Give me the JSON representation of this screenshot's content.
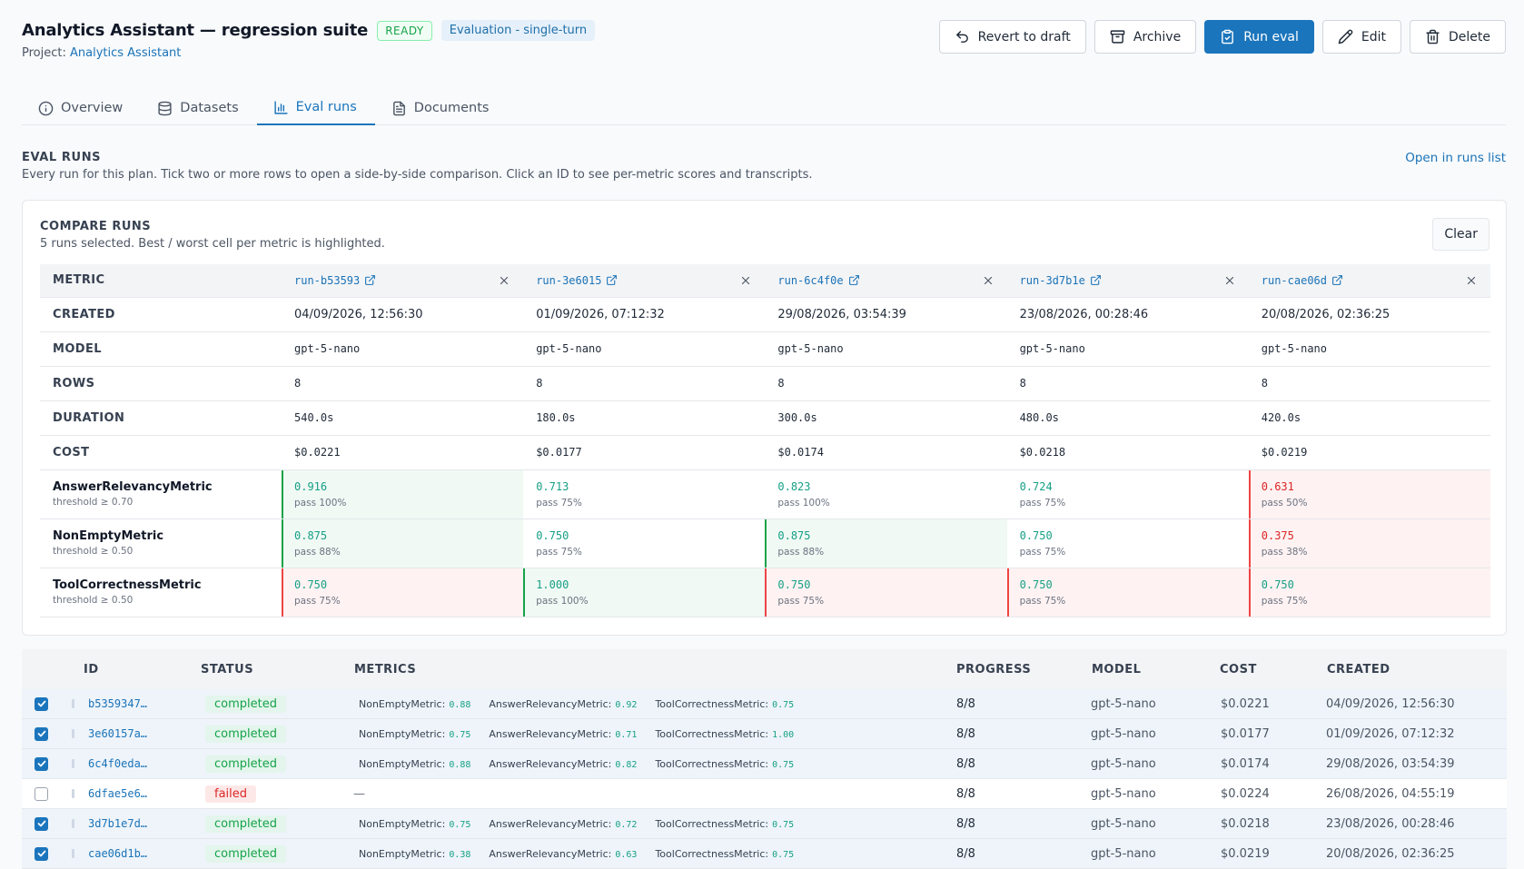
{
  "header": {
    "title": "Analytics Assistant — regression suite",
    "status_badge": "READY",
    "type_badge": "Evaluation - single-turn",
    "project_label": "Project:",
    "project_name": "Analytics Assistant"
  },
  "actions": {
    "revert": "Revert to draft",
    "archive": "Archive",
    "run_eval": "Run eval",
    "edit": "Edit",
    "delete": "Delete"
  },
  "tabs": [
    {
      "label": "Overview",
      "icon": "info-icon"
    },
    {
      "label": "Datasets",
      "icon": "database-icon"
    },
    {
      "label": "Eval runs",
      "icon": "bar-chart-icon",
      "active": true
    },
    {
      "label": "Documents",
      "icon": "document-icon"
    }
  ],
  "section": {
    "title": "EVAL RUNS",
    "description": "Every run for this plan. Tick two or more rows to open a side-by-side comparison. Click an ID to see per-metric scores and transcripts.",
    "open_link": "Open in runs list"
  },
  "compare": {
    "title": "COMPARE RUNS",
    "description": "5 runs selected. Best / worst cell per metric is highlighted.",
    "clear_label": "Clear",
    "metric_header": "METRIC",
    "runs": [
      {
        "id": "run-b53593",
        "created": "04/09/2026, 12:56:30",
        "model": "gpt-5-nano",
        "rows": "8",
        "duration": "540.0s",
        "cost": "$0.0221"
      },
      {
        "id": "run-3e6015",
        "created": "01/09/2026, 07:12:32",
        "model": "gpt-5-nano",
        "rows": "8",
        "duration": "180.0s",
        "cost": "$0.0177"
      },
      {
        "id": "run-6c4f0e",
        "created": "29/08/2026, 03:54:39",
        "model": "gpt-5-nano",
        "rows": "8",
        "duration": "300.0s",
        "cost": "$0.0174"
      },
      {
        "id": "run-3d7b1e",
        "created": "23/08/2026, 00:28:46",
        "model": "gpt-5-nano",
        "rows": "8",
        "duration": "480.0s",
        "cost": "$0.0218"
      },
      {
        "id": "run-cae06d",
        "created": "20/08/2026, 02:36:25",
        "model": "gpt-5-nano",
        "rows": "8",
        "duration": "420.0s",
        "cost": "$0.0219"
      }
    ],
    "row_labels": {
      "created": "CREATED",
      "model": "MODEL",
      "rows": "ROWS",
      "duration": "DURATION",
      "cost": "COST"
    },
    "metrics": [
      {
        "name": "AnswerRelevancyMetric",
        "threshold": "threshold ≥ 0.70",
        "cells": [
          {
            "score": "0.916",
            "pass": "pass 100%",
            "mark": "best"
          },
          {
            "score": "0.713",
            "pass": "pass 75%",
            "mark": ""
          },
          {
            "score": "0.823",
            "pass": "pass 100%",
            "mark": ""
          },
          {
            "score": "0.724",
            "pass": "pass 75%",
            "mark": ""
          },
          {
            "score": "0.631",
            "pass": "pass 50%",
            "mark": "worst"
          }
        ]
      },
      {
        "name": "NonEmptyMetric",
        "threshold": "threshold ≥ 0.50",
        "cells": [
          {
            "score": "0.875",
            "pass": "pass 88%",
            "mark": "best"
          },
          {
            "score": "0.750",
            "pass": "pass 75%",
            "mark": ""
          },
          {
            "score": "0.875",
            "pass": "pass 88%",
            "mark": "best"
          },
          {
            "score": "0.750",
            "pass": "pass 75%",
            "mark": ""
          },
          {
            "score": "0.375",
            "pass": "pass 38%",
            "mark": "worst"
          }
        ]
      },
      {
        "name": "ToolCorrectnessMetric",
        "threshold": "threshold ≥ 0.50",
        "cells": [
          {
            "score": "0.750",
            "pass": "pass 75%",
            "mark": "worst"
          },
          {
            "score": "1.000",
            "pass": "pass 100%",
            "mark": "best"
          },
          {
            "score": "0.750",
            "pass": "pass 75%",
            "mark": "worst"
          },
          {
            "score": "0.750",
            "pass": "pass 75%",
            "mark": "worst"
          },
          {
            "score": "0.750",
            "pass": "pass 75%",
            "mark": "worst"
          }
        ]
      }
    ]
  },
  "runs_table": {
    "headers": {
      "id": "ID",
      "status": "STATUS",
      "metrics": "METRICS",
      "progress": "PROGRESS",
      "model": "MODEL",
      "cost": "COST",
      "created": "CREATED"
    },
    "rows": [
      {
        "checked": true,
        "id": "b5359347…",
        "status": "completed",
        "ok": true,
        "metrics": [
          {
            "k": "NonEmptyMetric:",
            "v": "0.88"
          },
          {
            "k": "AnswerRelevancyMetric:",
            "v": "0.92"
          },
          {
            "k": "ToolCorrectnessMetric:",
            "v": "0.75"
          }
        ],
        "progress": "8/8",
        "model": "gpt-5-nano",
        "cost": "$0.0221",
        "created": "04/09/2026, 12:56:30"
      },
      {
        "checked": true,
        "id": "3e60157a…",
        "status": "completed",
        "ok": true,
        "metrics": [
          {
            "k": "NonEmptyMetric:",
            "v": "0.75"
          },
          {
            "k": "AnswerRelevancyMetric:",
            "v": "0.71"
          },
          {
            "k": "ToolCorrectnessMetric:",
            "v": "1.00"
          }
        ],
        "progress": "8/8",
        "model": "gpt-5-nano",
        "cost": "$0.0177",
        "created": "01/09/2026, 07:12:32"
      },
      {
        "checked": true,
        "id": "6c4f0eda…",
        "status": "completed",
        "ok": true,
        "metrics": [
          {
            "k": "NonEmptyMetric:",
            "v": "0.88"
          },
          {
            "k": "AnswerRelevancyMetric:",
            "v": "0.82"
          },
          {
            "k": "ToolCorrectnessMetric:",
            "v": "0.75"
          }
        ],
        "progress": "8/8",
        "model": "gpt-5-nano",
        "cost": "$0.0174",
        "created": "29/08/2026, 03:54:39"
      },
      {
        "checked": false,
        "id": "6dfae5e6…",
        "status": "failed",
        "ok": false,
        "metrics": [],
        "empty_metrics": "—",
        "progress": "8/8",
        "model": "gpt-5-nano",
        "cost": "$0.0224",
        "created": "26/08/2026, 04:55:19"
      },
      {
        "checked": true,
        "id": "3d7b1e7d…",
        "status": "completed",
        "ok": true,
        "metrics": [
          {
            "k": "NonEmptyMetric:",
            "v": "0.75"
          },
          {
            "k": "AnswerRelevancyMetric:",
            "v": "0.72"
          },
          {
            "k": "ToolCorrectnessMetric:",
            "v": "0.75"
          }
        ],
        "progress": "8/8",
        "model": "gpt-5-nano",
        "cost": "$0.0218",
        "created": "23/08/2026, 00:28:46"
      },
      {
        "checked": true,
        "id": "cae06d1b…",
        "status": "completed",
        "ok": true,
        "metrics": [
          {
            "k": "NonEmptyMetric:",
            "v": "0.38"
          },
          {
            "k": "AnswerRelevancyMetric:",
            "v": "0.63"
          },
          {
            "k": "ToolCorrectnessMetric:",
            "v": "0.75"
          }
        ],
        "progress": "8/8",
        "model": "gpt-5-nano",
        "cost": "$0.0219",
        "created": "20/08/2026, 02:36:25"
      }
    ]
  }
}
